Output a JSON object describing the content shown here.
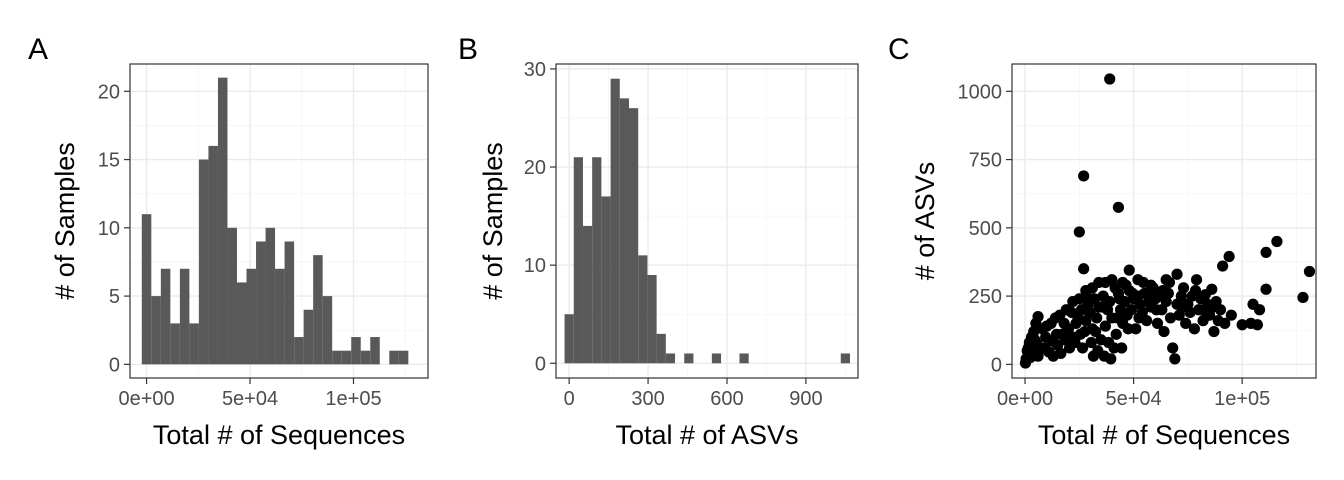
{
  "figure": {
    "panels": [
      "A",
      "B",
      "C"
    ]
  },
  "chart_data": [
    {
      "panel": "A",
      "type": "bar",
      "title": "",
      "xlabel": "Total # of Sequences",
      "ylabel": "# of Samples",
      "xlim": [
        -8000,
        136000
      ],
      "ylim": [
        -1.0,
        22.0
      ],
      "x_ticks": [
        0,
        50000,
        100000
      ],
      "x_tick_labels": [
        "0e+00",
        "5e+04",
        "1e+05"
      ],
      "y_ticks": [
        0,
        5,
        10,
        15,
        20
      ],
      "y_tick_labels": [
        "0",
        "5",
        "10",
        "15",
        "20"
      ],
      "bin_width": 4600,
      "bin_start": -2300,
      "values": [
        11,
        5,
        7,
        3,
        7,
        3,
        15,
        16,
        21,
        10,
        6,
        7,
        9,
        10,
        7,
        9,
        2,
        4,
        8,
        5,
        1,
        1,
        2,
        1,
        2,
        0,
        1,
        1
      ],
      "grid": true,
      "color": "#595959"
    },
    {
      "panel": "B",
      "type": "bar",
      "title": "",
      "xlabel": "Total # of ASVs",
      "ylabel": "# of Samples",
      "xlim": [
        -50,
        1098
      ],
      "ylim": [
        -1.5,
        30.5
      ],
      "x_ticks": [
        0,
        300,
        600,
        900
      ],
      "x_tick_labels": [
        "0",
        "300",
        "600",
        "900"
      ],
      "y_ticks": [
        0,
        10,
        20,
        30
      ],
      "y_tick_labels": [
        "0",
        "10",
        "20",
        "30"
      ],
      "bin_width": 35,
      "bin_start": -17.5,
      "values": [
        5,
        21,
        14,
        21,
        17,
        29,
        27,
        26,
        11,
        9,
        3,
        1,
        0,
        1,
        0,
        0,
        1,
        0,
        0,
        1,
        0,
        0,
        0,
        0,
        0,
        0,
        0,
        0,
        0,
        0,
        1
      ],
      "grid": true,
      "color": "#595959"
    },
    {
      "panel": "C",
      "type": "scatter",
      "title": "",
      "xlabel": "Total # of Sequences",
      "ylabel": "# of ASVs",
      "xlim": [
        -6000,
        134000
      ],
      "ylim": [
        -50,
        1100
      ],
      "x_ticks": [
        0,
        50000,
        100000
      ],
      "x_tick_labels": [
        "0e+00",
        "5e+04",
        "1e+05"
      ],
      "y_ticks": [
        0,
        250,
        500,
        750,
        1000
      ],
      "y_tick_labels": [
        "0",
        "250",
        "500",
        "750",
        "1000"
      ],
      "grid": true,
      "color": "#000000",
      "points": [
        [
          39000,
          1045
        ],
        [
          27000,
          690
        ],
        [
          43000,
          575
        ],
        [
          25000,
          485
        ],
        [
          27000,
          350
        ],
        [
          131000,
          340
        ],
        [
          116000,
          450
        ],
        [
          111000,
          410
        ],
        [
          128000,
          245
        ],
        [
          111000,
          275
        ],
        [
          94000,
          395
        ],
        [
          91000,
          360
        ],
        [
          86000,
          275
        ],
        [
          83000,
          255
        ],
        [
          79000,
          310
        ],
        [
          70000,
          330
        ],
        [
          65000,
          310
        ],
        [
          58000,
          290
        ],
        [
          52000,
          310
        ],
        [
          48000,
          345
        ],
        [
          45000,
          300
        ],
        [
          40000,
          310
        ],
        [
          37000,
          300
        ],
        [
          34000,
          300
        ],
        [
          31000,
          280
        ],
        [
          28000,
          270
        ],
        [
          25000,
          240
        ],
        [
          22000,
          230
        ],
        [
          19000,
          200
        ],
        [
          16000,
          180
        ],
        [
          14000,
          170
        ],
        [
          12000,
          150
        ],
        [
          10000,
          140
        ],
        [
          8000,
          130
        ],
        [
          6000,
          175
        ],
        [
          5000,
          150
        ],
        [
          4000,
          120
        ],
        [
          3000,
          100
        ],
        [
          2000,
          80
        ],
        [
          1000,
          50
        ],
        [
          500,
          20
        ],
        [
          200,
          5
        ],
        [
          1500,
          60
        ],
        [
          3500,
          40
        ],
        [
          6000,
          30
        ],
        [
          9000,
          60
        ],
        [
          11000,
          45
        ],
        [
          13000,
          30
        ],
        [
          15000,
          70
        ],
        [
          17000,
          110
        ],
        [
          18000,
          150
        ],
        [
          20000,
          130
        ],
        [
          22000,
          100
        ],
        [
          24000,
          180
        ],
        [
          26000,
          200
        ],
        [
          28000,
          160
        ],
        [
          29000,
          220
        ],
        [
          30000,
          190
        ],
        [
          31000,
          130
        ],
        [
          32000,
          240
        ],
        [
          33000,
          170
        ],
        [
          34000,
          210
        ],
        [
          35000,
          90
        ],
        [
          36000,
          250
        ],
        [
          37000,
          140
        ],
        [
          38000,
          200
        ],
        [
          39000,
          230
        ],
        [
          40000,
          170
        ],
        [
          41000,
          60
        ],
        [
          42000,
          110
        ],
        [
          43000,
          260
        ],
        [
          44000,
          200
        ],
        [
          45000,
          150
        ],
        [
          46000,
          230
        ],
        [
          47000,
          180
        ],
        [
          48000,
          270
        ],
        [
          49000,
          200
        ],
        [
          50000,
          240
        ],
        [
          51000,
          130
        ],
        [
          52000,
          250
        ],
        [
          53000,
          220
        ],
        [
          54000,
          190
        ],
        [
          55000,
          260
        ],
        [
          56000,
          160
        ],
        [
          57000,
          230
        ],
        [
          58000,
          210
        ],
        [
          59000,
          280
        ],
        [
          60000,
          240
        ],
        [
          61000,
          150
        ],
        [
          62000,
          250
        ],
        [
          63000,
          200
        ],
        [
          64000,
          120
        ],
        [
          65000,
          230
        ],
        [
          66000,
          260
        ],
        [
          67000,
          170
        ],
        [
          68000,
          60
        ],
        [
          69000,
          20
        ],
        [
          70000,
          220
        ],
        [
          71000,
          180
        ],
        [
          72000,
          250
        ],
        [
          73000,
          280
        ],
        [
          74000,
          150
        ],
        [
          75000,
          220
        ],
        [
          76000,
          190
        ],
        [
          77000,
          250
        ],
        [
          78000,
          130
        ],
        [
          80000,
          200
        ],
        [
          81000,
          240
        ],
        [
          82000,
          160
        ],
        [
          84000,
          220
        ],
        [
          85000,
          180
        ],
        [
          87000,
          120
        ],
        [
          88000,
          230
        ],
        [
          89000,
          160
        ],
        [
          90000,
          200
        ],
        [
          92000,
          150
        ],
        [
          95000,
          180
        ],
        [
          100000,
          145
        ],
        [
          104000,
          150
        ],
        [
          107000,
          145
        ],
        [
          108000,
          200
        ],
        [
          105000,
          220
        ],
        [
          27500,
          120
        ],
        [
          30500,
          80
        ],
        [
          33500,
          50
        ],
        [
          36500,
          30
        ],
        [
          39500,
          20
        ],
        [
          26500,
          60
        ],
        [
          23500,
          150
        ],
        [
          21500,
          190
        ],
        [
          20500,
          60
        ],
        [
          18500,
          90
        ],
        [
          16500,
          40
        ],
        [
          14500,
          110
        ],
        [
          12500,
          85
        ],
        [
          9500,
          100
        ],
        [
          7500,
          55
        ],
        [
          5500,
          75
        ],
        [
          4500,
          90
        ],
        [
          2500,
          25
        ],
        [
          41500,
          280
        ],
        [
          43500,
          240
        ],
        [
          46500,
          290
        ],
        [
          49500,
          260
        ],
        [
          54500,
          300
        ],
        [
          57500,
          250
        ],
        [
          60500,
          200
        ],
        [
          63500,
          270
        ],
        [
          66500,
          300
        ],
        [
          72500,
          210
        ],
        [
          78500,
          270
        ],
        [
          83500,
          190
        ],
        [
          86500,
          210
        ],
        [
          38500,
          80
        ],
        [
          35500,
          210
        ],
        [
          32500,
          120
        ],
        [
          29500,
          240
        ],
        [
          42500,
          170
        ],
        [
          47500,
          130
        ],
        [
          52500,
          170
        ],
        [
          25500,
          110
        ],
        [
          23000,
          80
        ],
        [
          44500,
          60
        ],
        [
          31500,
          30
        ],
        [
          28500,
          200
        ]
      ]
    }
  ]
}
